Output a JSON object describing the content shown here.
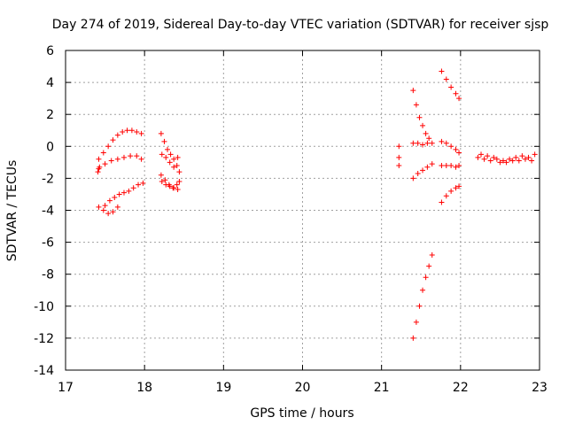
{
  "chart_data": {
    "type": "scatter",
    "title": "Day 274 of 2019, Sidereal Day-to-day VTEC variation (SDTVAR) for receiver sjsp",
    "xlabel": "GPS time / hours",
    "ylabel": "SDTVAR / TECUs",
    "xlim": [
      17,
      23
    ],
    "ylim": [
      -14,
      6
    ],
    "x_ticks": [
      "17",
      "18",
      "19",
      "20",
      "21",
      "22",
      "23"
    ],
    "y_ticks": [
      "-14",
      "-12",
      "-10",
      "-8",
      "-6",
      "-4",
      "-2",
      "0",
      "2",
      "4",
      "6"
    ],
    "grid": true,
    "marker": "+",
    "marker_color": "#ff0000",
    "series": [
      {
        "x": [
          17.42,
          17.48,
          17.54,
          17.6,
          17.66,
          17.72,
          17.78,
          17.84,
          17.9,
          17.96
        ],
        "y": [
          -0.8,
          -0.4,
          0.0,
          0.4,
          0.7,
          0.9,
          1.0,
          1.0,
          0.9,
          0.8
        ]
      },
      {
        "x": [
          17.42,
          17.5,
          17.58,
          17.66,
          17.74,
          17.82,
          17.9,
          17.96
        ],
        "y": [
          -1.4,
          -1.1,
          -0.9,
          -0.8,
          -0.7,
          -0.6,
          -0.6,
          -0.8
        ]
      },
      {
        "x": [
          17.42,
          17.48,
          17.54,
          17.6,
          17.66
        ],
        "y": [
          -3.8,
          -4.0,
          -4.2,
          -4.1,
          -3.8
        ]
      },
      {
        "x": [
          17.5,
          17.56,
          17.62,
          17.68,
          17.74,
          17.8,
          17.86,
          17.92,
          17.98
        ],
        "y": [
          -3.7,
          -3.4,
          -3.2,
          -3.0,
          -2.9,
          -2.8,
          -2.6,
          -2.4,
          -2.3
        ]
      },
      {
        "x": [
          17.41,
          17.43
        ],
        "y": [
          -1.6,
          -1.3
        ]
      },
      {
        "x": [
          18.21,
          18.25,
          18.29,
          18.33,
          18.37,
          18.41,
          18.44
        ],
        "y": [
          0.8,
          0.3,
          -0.2,
          -0.5,
          -0.8,
          -1.2,
          -1.6
        ]
      },
      {
        "x": [
          18.22,
          18.27,
          18.32,
          18.37,
          18.42
        ],
        "y": [
          -0.5,
          -0.7,
          -1.0,
          -1.3,
          -0.7
        ]
      },
      {
        "x": [
          18.21,
          18.26,
          18.31,
          18.36,
          18.41,
          18.44
        ],
        "y": [
          -1.8,
          -2.1,
          -2.4,
          -2.6,
          -2.4,
          -2.2
        ]
      },
      {
        "x": [
          18.22,
          18.27,
          18.32,
          18.37,
          18.42
        ],
        "y": [
          -2.2,
          -2.4,
          -2.5,
          -2.6,
          -2.7
        ]
      },
      {
        "x": [
          21.22,
          21.22,
          21.22
        ],
        "y": [
          0.0,
          -0.7,
          -1.2
        ]
      },
      {
        "x": [
          21.4,
          21.44,
          21.48,
          21.52,
          21.56,
          21.6
        ],
        "y": [
          3.5,
          2.6,
          1.8,
          1.3,
          0.8,
          0.5
        ]
      },
      {
        "x": [
          21.4,
          21.46,
          21.52,
          21.58,
          21.64
        ],
        "y": [
          0.2,
          0.2,
          0.1,
          0.2,
          0.2
        ]
      },
      {
        "x": [
          21.4,
          21.46,
          21.52,
          21.58,
          21.64
        ],
        "y": [
          -2.0,
          -1.7,
          -1.5,
          -1.3,
          -1.1
        ]
      },
      {
        "x": [
          21.4,
          21.44,
          21.48,
          21.52,
          21.56,
          21.6,
          21.64
        ],
        "y": [
          -12.0,
          -11.0,
          -10.0,
          -9.0,
          -8.2,
          -7.5,
          -6.8
        ]
      },
      {
        "x": [
          21.76,
          21.82,
          21.88,
          21.94,
          21.98
        ],
        "y": [
          4.7,
          4.2,
          3.7,
          3.3,
          3.0
        ]
      },
      {
        "x": [
          21.76,
          21.82,
          21.88,
          21.94,
          21.98
        ],
        "y": [
          0.3,
          0.2,
          0.0,
          -0.2,
          -0.4
        ]
      },
      {
        "x": [
          21.76,
          21.82,
          21.88,
          21.94,
          21.98
        ],
        "y": [
          -1.2,
          -1.2,
          -1.2,
          -1.3,
          -1.2
        ]
      },
      {
        "x": [
          21.76,
          21.82,
          21.88,
          21.94,
          21.98
        ],
        "y": [
          -3.5,
          -3.1,
          -2.8,
          -2.6,
          -2.5
        ]
      },
      {
        "x": [
          22.22,
          22.3,
          22.38,
          22.46,
          22.54,
          22.62,
          22.7,
          22.78,
          22.86,
          22.94
        ],
        "y": [
          -0.7,
          -0.8,
          -0.9,
          -0.8,
          -0.9,
          -0.8,
          -0.7,
          -0.6,
          -0.7,
          -0.5
        ]
      },
      {
        "x": [
          22.26,
          22.34,
          22.42,
          22.5,
          22.58,
          22.66,
          22.74,
          22.82,
          22.9
        ],
        "y": [
          -0.5,
          -0.6,
          -0.7,
          -1.0,
          -1.0,
          -0.9,
          -0.9,
          -0.8,
          -0.9
        ]
      }
    ]
  }
}
